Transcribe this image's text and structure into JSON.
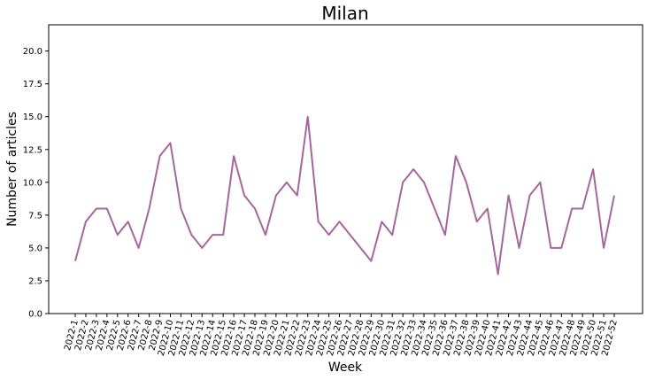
{
  "chart_data": {
    "type": "line",
    "title": "Milan",
    "xlabel": "Week",
    "ylabel": "Number of articles",
    "ylim": [
      0,
      22
    ],
    "yticks": [
      "0.0",
      "2.5",
      "5.0",
      "7.5",
      "10.0",
      "12.5",
      "15.0",
      "17.5",
      "20.0"
    ],
    "line_color": "#a5669f",
    "grid": false,
    "categories": [
      "2022-1",
      "2022-2",
      "2022-3",
      "2022-4",
      "2022-5",
      "2022-6",
      "2022-7",
      "2022-8",
      "2022-9",
      "2022-10",
      "2022-11",
      "2022-12",
      "2022-13",
      "2022-14",
      "2022-15",
      "2022-16",
      "2022-17",
      "2022-18",
      "2022-19",
      "2022-20",
      "2022-21",
      "2022-22",
      "2022-23",
      "2022-24",
      "2022-25",
      "2022-26",
      "2022-27",
      "2022-28",
      "2022-29",
      "2022-30",
      "2022-31",
      "2022-32",
      "2022-33",
      "2022-34",
      "2022-35",
      "2022-36",
      "2022-37",
      "2022-38",
      "2022-39",
      "2022-40",
      "2022-41",
      "2022-42",
      "2022-43",
      "2022-44",
      "2022-45",
      "2022-46",
      "2022-47",
      "2022-48",
      "2022-49",
      "2022-50",
      "2022-51",
      "2022-52"
    ],
    "values": [
      4,
      7,
      8,
      8,
      6,
      7,
      5,
      8,
      12,
      13,
      8,
      6,
      5,
      6,
      6,
      12,
      9,
      8,
      6,
      9,
      10,
      9,
      15,
      7,
      6,
      7,
      6,
      5,
      4,
      7,
      6,
      10,
      11,
      10,
      8,
      6,
      12,
      10,
      7,
      8,
      3,
      9,
      5,
      9,
      10,
      5,
      5,
      8,
      8,
      11,
      5,
      9
    ]
  }
}
